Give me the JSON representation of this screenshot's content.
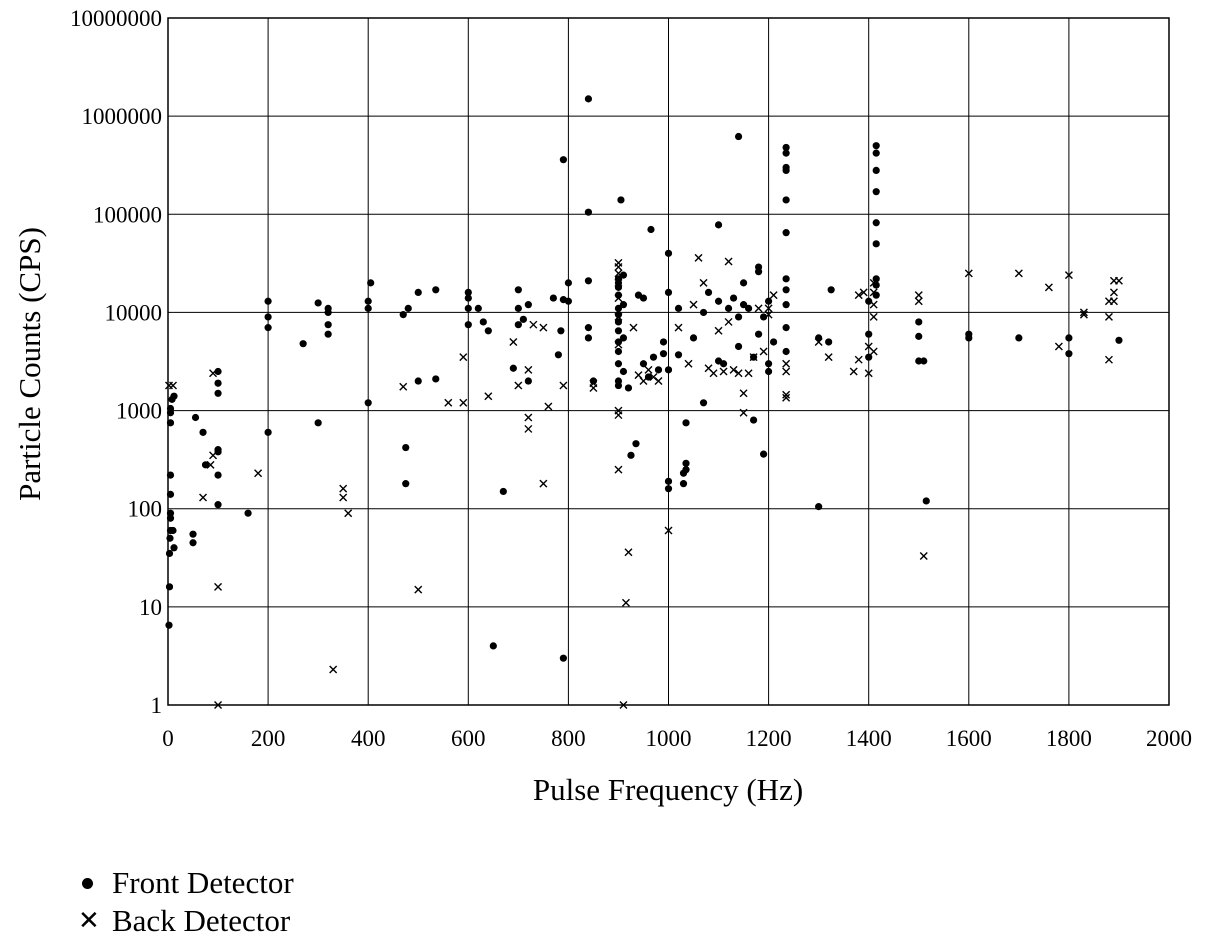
{
  "chart_data": {
    "type": "scatter",
    "title": "",
    "xlabel": "Pulse Frequency (Hz)",
    "ylabel": "Particle Counts (CPS)",
    "xlim": [
      0,
      2000
    ],
    "ylim": [
      1,
      10000000
    ],
    "yscale": "log",
    "grid": true,
    "legend_position": "bottom-left",
    "x_tick_labels": [
      "0",
      "200",
      "400",
      "600",
      "800",
      "1000",
      "1200",
      "1400",
      "1600",
      "1800",
      "2000"
    ],
    "y_tick_labels": [
      "1",
      "10",
      "100",
      "1000",
      "10000",
      "100000",
      "1000000",
      "10000000"
    ],
    "series": [
      {
        "name": "Front Detector",
        "marker": "dot",
        "points": [
          [
            2,
            6.5
          ],
          [
            3,
            16
          ],
          [
            3,
            35
          ],
          [
            4,
            50
          ],
          [
            5,
            60
          ],
          [
            5,
            80
          ],
          [
            5,
            90
          ],
          [
            5,
            140
          ],
          [
            5,
            220
          ],
          [
            5,
            750
          ],
          [
            5,
            950
          ],
          [
            5,
            1050
          ],
          [
            8,
            1300
          ],
          [
            10,
            60
          ],
          [
            12,
            40
          ],
          [
            12,
            1400
          ],
          [
            50,
            45
          ],
          [
            50,
            55
          ],
          [
            55,
            850
          ],
          [
            70,
            600
          ],
          [
            75,
            280
          ],
          [
            100,
            110
          ],
          [
            100,
            220
          ],
          [
            100,
            380
          ],
          [
            100,
            400
          ],
          [
            100,
            1500
          ],
          [
            100,
            1900
          ],
          [
            100,
            2500
          ],
          [
            160,
            90
          ],
          [
            200,
            600
          ],
          [
            200,
            7000
          ],
          [
            200,
            9000
          ],
          [
            200,
            13000
          ],
          [
            270,
            4800
          ],
          [
            300,
            750
          ],
          [
            300,
            12500
          ],
          [
            320,
            6000
          ],
          [
            320,
            7500
          ],
          [
            320,
            10000
          ],
          [
            320,
            11000
          ],
          [
            400,
            1200
          ],
          [
            400,
            11000
          ],
          [
            400,
            13000
          ],
          [
            405,
            20000
          ],
          [
            470,
            9500
          ],
          [
            475,
            180
          ],
          [
            475,
            420
          ],
          [
            480,
            11000
          ],
          [
            500,
            2000
          ],
          [
            500,
            16000
          ],
          [
            535,
            2100
          ],
          [
            535,
            17000
          ],
          [
            600,
            7500
          ],
          [
            600,
            11000
          ],
          [
            600,
            14000
          ],
          [
            600,
            16000
          ],
          [
            620,
            11000
          ],
          [
            630,
            8000
          ],
          [
            640,
            6500
          ],
          [
            650,
            4
          ],
          [
            670,
            150
          ],
          [
            690,
            2700
          ],
          [
            700,
            7500
          ],
          [
            700,
            11000
          ],
          [
            700,
            17000
          ],
          [
            710,
            8500
          ],
          [
            720,
            2000
          ],
          [
            720,
            12000
          ],
          [
            770,
            14000
          ],
          [
            780,
            3700
          ],
          [
            785,
            6500
          ],
          [
            790,
            3
          ],
          [
            790,
            13500
          ],
          [
            790,
            360000
          ],
          [
            800,
            13000
          ],
          [
            800,
            20000
          ],
          [
            840,
            1500000
          ],
          [
            840,
            21000
          ],
          [
            840,
            105000
          ],
          [
            840,
            5500
          ],
          [
            840,
            7000
          ],
          [
            850,
            2000
          ],
          [
            900,
            1800
          ],
          [
            900,
            2000
          ],
          [
            900,
            3000
          ],
          [
            900,
            4000
          ],
          [
            900,
            5000
          ],
          [
            900,
            6500
          ],
          [
            900,
            8000
          ],
          [
            900,
            9500
          ],
          [
            900,
            11000
          ],
          [
            900,
            15000
          ],
          [
            900,
            18000
          ],
          [
            900,
            20000
          ],
          [
            900,
            22000
          ],
          [
            905,
            140000
          ],
          [
            910,
            2500
          ],
          [
            910,
            5500
          ],
          [
            910,
            12000
          ],
          [
            910,
            24000
          ],
          [
            920,
            1700
          ],
          [
            925,
            350
          ],
          [
            935,
            460
          ],
          [
            940,
            15000
          ],
          [
            950,
            3000
          ],
          [
            950,
            14000
          ],
          [
            960,
            2200
          ],
          [
            965,
            70000
          ],
          [
            970,
            3500
          ],
          [
            980,
            2600
          ],
          [
            990,
            3800
          ],
          [
            990,
            5000
          ],
          [
            1000,
            160
          ],
          [
            1000,
            190
          ],
          [
            1000,
            2600
          ],
          [
            1000,
            16000
          ],
          [
            1000,
            40000
          ],
          [
            1020,
            3700
          ],
          [
            1020,
            11000
          ],
          [
            1030,
            180
          ],
          [
            1030,
            230
          ],
          [
            1035,
            250
          ],
          [
            1035,
            290
          ],
          [
            1035,
            750
          ],
          [
            1050,
            5500
          ],
          [
            1070,
            10000
          ],
          [
            1070,
            1200
          ],
          [
            1080,
            16000
          ],
          [
            1100,
            3200
          ],
          [
            1100,
            13000
          ],
          [
            1100,
            78000
          ],
          [
            1110,
            3000
          ],
          [
            1120,
            11000
          ],
          [
            1130,
            14000
          ],
          [
            1140,
            4500
          ],
          [
            1140,
            9000
          ],
          [
            1140,
            620000
          ],
          [
            1150,
            12000
          ],
          [
            1150,
            20000
          ],
          [
            1160,
            11000
          ],
          [
            1170,
            800
          ],
          [
            1170,
            3500
          ],
          [
            1180,
            6000
          ],
          [
            1180,
            26000
          ],
          [
            1180,
            29000
          ],
          [
            1190,
            360
          ],
          [
            1190,
            9000
          ],
          [
            1200,
            2500
          ],
          [
            1200,
            3000
          ],
          [
            1200,
            13000
          ],
          [
            1210,
            5000
          ],
          [
            1235,
            65000
          ],
          [
            1235,
            140000
          ],
          [
            1235,
            280000
          ],
          [
            1235,
            300000
          ],
          [
            1235,
            420000
          ],
          [
            1235,
            480000
          ],
          [
            1235,
            22000
          ],
          [
            1235,
            17000
          ],
          [
            1235,
            12000
          ],
          [
            1235,
            7000
          ],
          [
            1235,
            4000
          ],
          [
            1300,
            105
          ],
          [
            1300,
            5500
          ],
          [
            1320,
            5000
          ],
          [
            1325,
            17000
          ],
          [
            1400,
            3500
          ],
          [
            1400,
            6000
          ],
          [
            1400,
            13000
          ],
          [
            1415,
            50000
          ],
          [
            1415,
            82000
          ],
          [
            1415,
            170000
          ],
          [
            1415,
            280000
          ],
          [
            1415,
            420000
          ],
          [
            1415,
            500000
          ],
          [
            1415,
            15000
          ],
          [
            1415,
            19000
          ],
          [
            1415,
            22000
          ],
          [
            1500,
            3200
          ],
          [
            1500,
            5700
          ],
          [
            1500,
            8000
          ],
          [
            1510,
            3200
          ],
          [
            1515,
            120
          ],
          [
            1600,
            5500
          ],
          [
            1600,
            6000
          ],
          [
            1700,
            5500
          ],
          [
            1800,
            3800
          ],
          [
            1800,
            5500
          ],
          [
            1900,
            5200
          ]
        ]
      },
      {
        "name": "Back Detector",
        "marker": "x",
        "points": [
          [
            2,
            1800
          ],
          [
            10,
            1800
          ],
          [
            90,
            2400
          ],
          [
            100,
            16
          ],
          [
            100,
            1
          ],
          [
            70,
            130
          ],
          [
            85,
            280
          ],
          [
            90,
            350
          ],
          [
            180,
            230
          ],
          [
            330,
            2.3
          ],
          [
            350,
            130
          ],
          [
            350,
            160
          ],
          [
            360,
            90
          ],
          [
            470,
            1750
          ],
          [
            500,
            15
          ],
          [
            560,
            1200
          ],
          [
            590,
            1200
          ],
          [
            590,
            3500
          ],
          [
            640,
            1400
          ],
          [
            690,
            5000
          ],
          [
            700,
            1800
          ],
          [
            720,
            650
          ],
          [
            720,
            850
          ],
          [
            720,
            2600
          ],
          [
            730,
            7500
          ],
          [
            750,
            180
          ],
          [
            750,
            7000
          ],
          [
            760,
            1100
          ],
          [
            790,
            1800
          ],
          [
            850,
            1700
          ],
          [
            850,
            1900
          ],
          [
            900,
            250
          ],
          [
            900,
            900
          ],
          [
            900,
            1000
          ],
          [
            900,
            4700
          ],
          [
            900,
            9000
          ],
          [
            900,
            14000
          ],
          [
            900,
            20000
          ],
          [
            900,
            25000
          ],
          [
            900,
            29000
          ],
          [
            900,
            32000
          ],
          [
            910,
            1
          ],
          [
            915,
            11
          ],
          [
            920,
            36
          ],
          [
            930,
            7000
          ],
          [
            940,
            2300
          ],
          [
            950,
            2000
          ],
          [
            960,
            2600
          ],
          [
            970,
            2200
          ],
          [
            980,
            2000
          ],
          [
            1000,
            60
          ],
          [
            1020,
            7000
          ],
          [
            1040,
            3000
          ],
          [
            1050,
            12000
          ],
          [
            1070,
            20000
          ],
          [
            1060,
            36000
          ],
          [
            1080,
            2700
          ],
          [
            1090,
            2400
          ],
          [
            1100,
            6500
          ],
          [
            1110,
            2500
          ],
          [
            1120,
            8000
          ],
          [
            1120,
            33000
          ],
          [
            1130,
            2600
          ],
          [
            1140,
            2400
          ],
          [
            1150,
            950
          ],
          [
            1150,
            1500
          ],
          [
            1160,
            2400
          ],
          [
            1170,
            3500
          ],
          [
            1180,
            11000
          ],
          [
            1190,
            4000
          ],
          [
            1200,
            9500
          ],
          [
            1200,
            11000
          ],
          [
            1210,
            15000
          ],
          [
            1235,
            1350
          ],
          [
            1235,
            1450
          ],
          [
            1235,
            2500
          ],
          [
            1235,
            3000
          ],
          [
            1300,
            5000
          ],
          [
            1320,
            3500
          ],
          [
            1370,
            2500
          ],
          [
            1380,
            3300
          ],
          [
            1380,
            15000
          ],
          [
            1390,
            16000
          ],
          [
            1400,
            2400
          ],
          [
            1400,
            4500
          ],
          [
            1410,
            4000
          ],
          [
            1410,
            9000
          ],
          [
            1410,
            12000
          ],
          [
            1410,
            16000
          ],
          [
            1410,
            20000
          ],
          [
            1510,
            33
          ],
          [
            1500,
            13000
          ],
          [
            1500,
            15000
          ],
          [
            1600,
            25000
          ],
          [
            1700,
            25000
          ],
          [
            1760,
            18000
          ],
          [
            1780,
            4500
          ],
          [
            1800,
            24000
          ],
          [
            1830,
            9500
          ],
          [
            1830,
            10000
          ],
          [
            1880,
            3300
          ],
          [
            1880,
            9000
          ],
          [
            1880,
            13000
          ],
          [
            1890,
            13000
          ],
          [
            1890,
            16000
          ],
          [
            1890,
            21000
          ],
          [
            1900,
            21000
          ]
        ]
      }
    ]
  },
  "legend": {
    "front_label": "Front Detector",
    "back_label": "Back Detector"
  }
}
